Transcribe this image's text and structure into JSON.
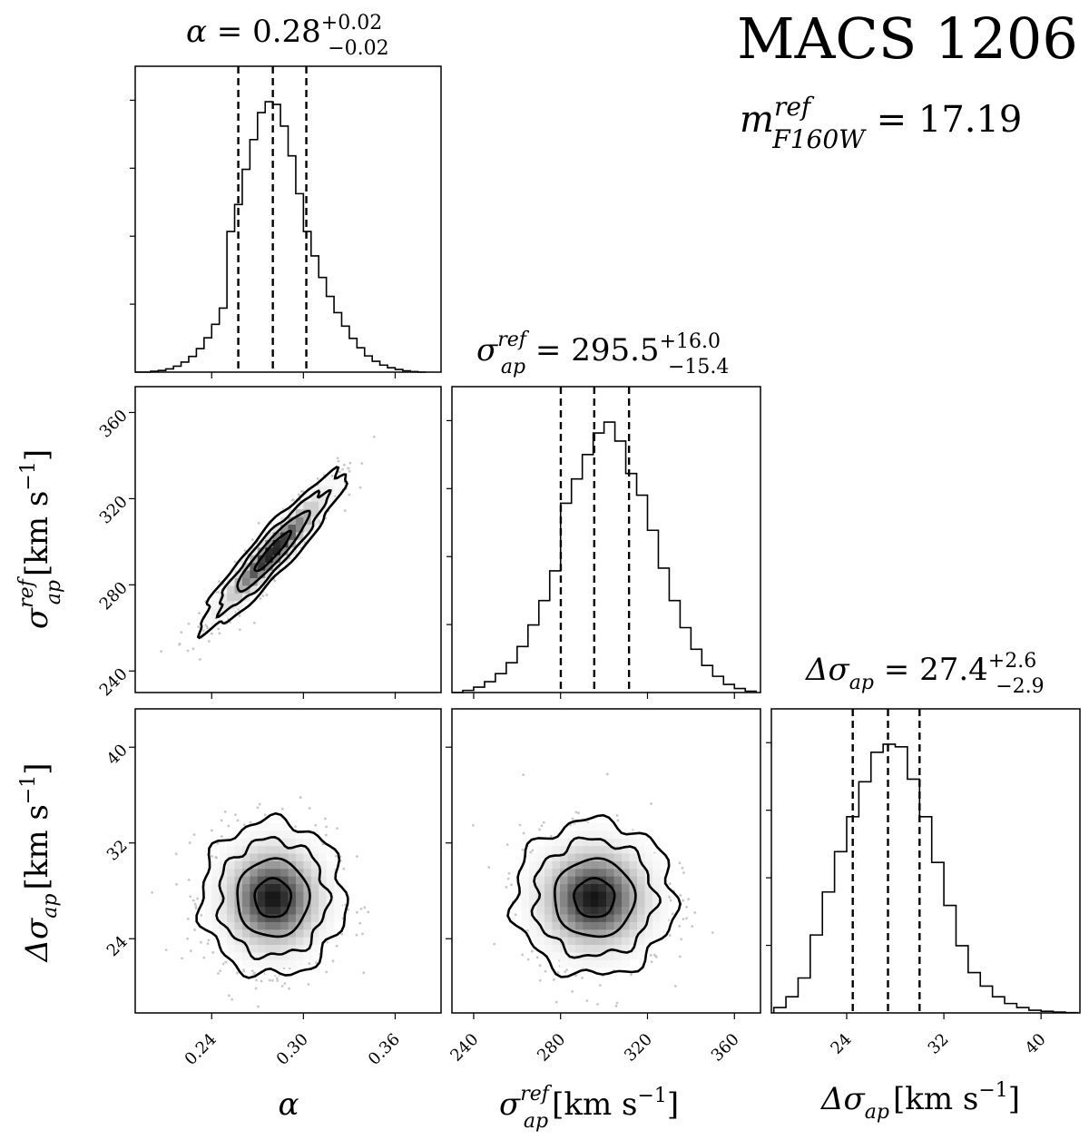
{
  "header": {
    "title": "MACS 1206",
    "magnitude_label": "m",
    "magnitude_sup": "ref",
    "magnitude_sub": "F160W",
    "magnitude_value": " = 17.19"
  },
  "panel_titles": {
    "alpha": {
      "sym": "α",
      "rest": " = 0.28",
      "plus": "+0.02",
      "minus": "−0.02"
    },
    "sigma": {
      "sym": "σ",
      "sub": "ap",
      "sup": "ref",
      "rest": " = 295.5",
      "plus": "+16.0",
      "minus": "−15.4"
    },
    "dsigma": {
      "sym": "Δσ",
      "sub": "ap",
      "rest": " = 27.4",
      "plus": "+2.6",
      "minus": "−2.9"
    }
  },
  "axis_labels": {
    "alpha": "α",
    "sigma_sym": "σ",
    "sigma_sub": "ap",
    "sigma_sup": "ref",
    "sigma_unit": "[km s",
    "sigma_exp": "−1",
    "sigma_close": "]",
    "dsigma_sym": "Δσ",
    "dsigma_sub": "ap",
    "dsigma_unit": "[km s",
    "dsigma_exp": "−1",
    "dsigma_close": "]"
  },
  "tick_labels": {
    "alpha": [
      "0.24",
      "0.30",
      "0.36"
    ],
    "sigma": [
      "240",
      "280",
      "320",
      "360"
    ],
    "dsigma": [
      "24",
      "32",
      "40"
    ]
  },
  "chart_data": {
    "type": "corner",
    "parameters": [
      "alpha",
      "sigma_ap_ref",
      "delta_sigma_ap"
    ],
    "ranges": {
      "alpha": [
        0.19,
        0.39
      ],
      "sigma_ap_ref": [
        230,
        372
      ],
      "delta_sigma_ap": [
        17.8,
        43.2
      ]
    },
    "ticks": {
      "alpha": [
        0.24,
        0.3,
        0.36
      ],
      "sigma_ap_ref": [
        240,
        280,
        320,
        360
      ],
      "delta_sigma_ap": [
        24,
        32,
        40
      ]
    },
    "quantiles": {
      "alpha": [
        0.2574,
        0.28,
        0.3019
      ],
      "sigma_ap_ref": [
        280.1,
        295.5,
        311.5
      ],
      "delta_sigma_ap": [
        24.5,
        27.4,
        30.0
      ]
    },
    "histograms": {
      "alpha": {
        "bin_edges": [
          0.19,
          0.2,
          0.205,
          0.21,
          0.215,
          0.22,
          0.225,
          0.23,
          0.235,
          0.24,
          0.245,
          0.25,
          0.255,
          0.26,
          0.265,
          0.27,
          0.275,
          0.28,
          0.285,
          0.29,
          0.295,
          0.3,
          0.305,
          0.31,
          0.315,
          0.32,
          0.325,
          0.33,
          0.335,
          0.34,
          0.345,
          0.35,
          0.355,
          0.36,
          0.365,
          0.37,
          0.375,
          0.38
        ],
        "counts": [
          0,
          0.003,
          0.006,
          0.012,
          0.022,
          0.037,
          0.058,
          0.087,
          0.127,
          0.177,
          0.237,
          0.52,
          0.62,
          0.75,
          0.86,
          0.96,
          1.0,
          0.99,
          0.91,
          0.8,
          0.66,
          0.52,
          0.43,
          0.35,
          0.28,
          0.22,
          0.17,
          0.125,
          0.09,
          0.06,
          0.04,
          0.026,
          0.016,
          0.01,
          0.005,
          0.002,
          0
        ]
      },
      "sigma_ap_ref": {
        "bin_edges": [
          230,
          235,
          240,
          245,
          250,
          255,
          260,
          265,
          270,
          275,
          280,
          285,
          290,
          295,
          300,
          305,
          310,
          315,
          320,
          325,
          330,
          335,
          340,
          345,
          350,
          355,
          360,
          365,
          370
        ],
        "counts": [
          0,
          0.008,
          0.02,
          0.04,
          0.07,
          0.11,
          0.17,
          0.25,
          0.34,
          0.45,
          0.7,
          0.79,
          0.88,
          0.96,
          1.0,
          0.93,
          0.81,
          0.73,
          0.6,
          0.46,
          0.34,
          0.24,
          0.16,
          0.1,
          0.06,
          0.03,
          0.015,
          0.005
        ]
      },
      "delta_sigma_ap": {
        "bin_edges": [
          18,
          19,
          20,
          21,
          22,
          23,
          24,
          25,
          26,
          27,
          28,
          29,
          30,
          31,
          32,
          33,
          34,
          35,
          36,
          37,
          38,
          39,
          40,
          41,
          42,
          43
        ],
        "counts": [
          0.02,
          0.06,
          0.13,
          0.29,
          0.45,
          0.6,
          0.73,
          0.86,
          0.97,
          1.0,
          0.99,
          0.87,
          0.73,
          0.56,
          0.4,
          0.25,
          0.15,
          0.1,
          0.06,
          0.035,
          0.02,
          0.01,
          0.006,
          0.003,
          0.001
        ]
      }
    },
    "contours_2d": [
      {
        "x": "alpha",
        "y": "sigma_ap_ref",
        "center": [
          0.28,
          295.5
        ],
        "spread": [
          0.02,
          15.7
        ],
        "correlation": 0.93,
        "levels_sigma": [
          0.5,
          1.0,
          1.5,
          2.0
        ]
      },
      {
        "x": "alpha",
        "y": "delta_sigma_ap",
        "center": [
          0.28,
          27.4
        ],
        "spread": [
          0.02,
          2.75
        ],
        "correlation": 0.0,
        "levels_sigma": [
          0.5,
          1.0,
          1.5,
          2.0
        ]
      },
      {
        "x": "sigma_ap_ref",
        "y": "delta_sigma_ap",
        "center": [
          295.5,
          27.4
        ],
        "spread": [
          15.7,
          2.75
        ],
        "correlation": 0.0,
        "levels_sigma": [
          0.5,
          1.0,
          1.5,
          2.0
        ]
      }
    ],
    "colors": {
      "lines": "#000000",
      "density": "#000000",
      "samples": "#c8c8c8",
      "background": "#ffffff"
    }
  }
}
